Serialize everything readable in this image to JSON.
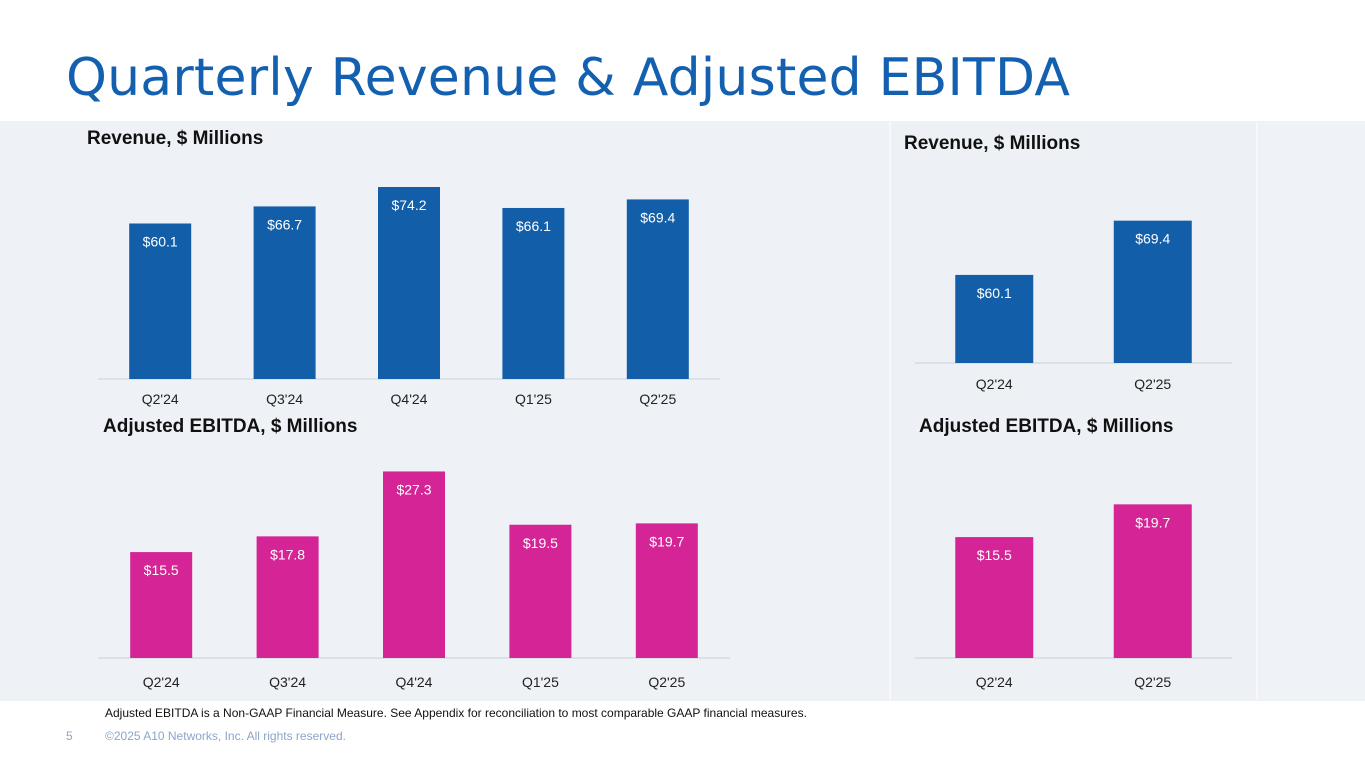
{
  "page": {
    "title": "Quarterly Revenue & Adjusted EBITDA",
    "footnote": "Adjusted EBITDA is a Non-GAAP Financial Measure. See Appendix for reconciliation to most comparable GAAP financial measures.",
    "page_number": "5",
    "copyright": "©2025 A10 Networks, Inc. All rights reserved."
  },
  "colors": {
    "revenue": "#135ea9",
    "ebitda": "#d42496",
    "bar_label": "#ffffff",
    "axis": "#d5dae2",
    "title": "#1360b0"
  },
  "chart_data": [
    {
      "id": "revenue-quarterly",
      "type": "bar",
      "title": "Revenue, $ Millions",
      "xlabel": "",
      "ylabel": "",
      "categories": [
        "Q2'24",
        "Q3'24",
        "Q4'24",
        "Q1'25",
        "Q2'25"
      ],
      "values": [
        60.1,
        66.7,
        74.2,
        66.1,
        69.4
      ],
      "labels": [
        "$60.1",
        "$66.7",
        "$74.2",
        "$66.1",
        "$69.4"
      ],
      "ylim": [
        0,
        80
      ],
      "grid": false,
      "legend": "none"
    },
    {
      "id": "ebitda-quarterly",
      "type": "bar",
      "title": "Adjusted EBITDA, $ Millions",
      "xlabel": "",
      "ylabel": "",
      "categories": [
        "Q2'24",
        "Q3'24",
        "Q4'24",
        "Q1'25",
        "Q2'25"
      ],
      "values": [
        15.5,
        17.8,
        27.3,
        19.5,
        19.7
      ],
      "labels": [
        "$15.5",
        "$17.8",
        "$27.3",
        "$19.5",
        "$19.7"
      ],
      "ylim": [
        0,
        30
      ],
      "grid": false,
      "legend": "none"
    },
    {
      "id": "revenue-yoy",
      "type": "bar",
      "title": "Revenue, $ Millions",
      "xlabel": "",
      "ylabel": "",
      "categories": [
        "Q2'24",
        "Q2'25"
      ],
      "values": [
        60.1,
        69.4
      ],
      "labels": [
        "$60.1",
        "$69.4"
      ],
      "ylim": [
        45,
        75
      ],
      "grid": false,
      "legend": "none"
    },
    {
      "id": "ebitda-yoy",
      "type": "bar",
      "title": "Adjusted EBITDA, $ Millions",
      "xlabel": "",
      "ylabel": "",
      "categories": [
        "Q2'24",
        "Q2'25"
      ],
      "values": [
        15.5,
        19.7
      ],
      "labels": [
        "$15.5",
        "$19.7"
      ],
      "ylim": [
        0,
        25
      ],
      "grid": false,
      "legend": "none"
    }
  ]
}
